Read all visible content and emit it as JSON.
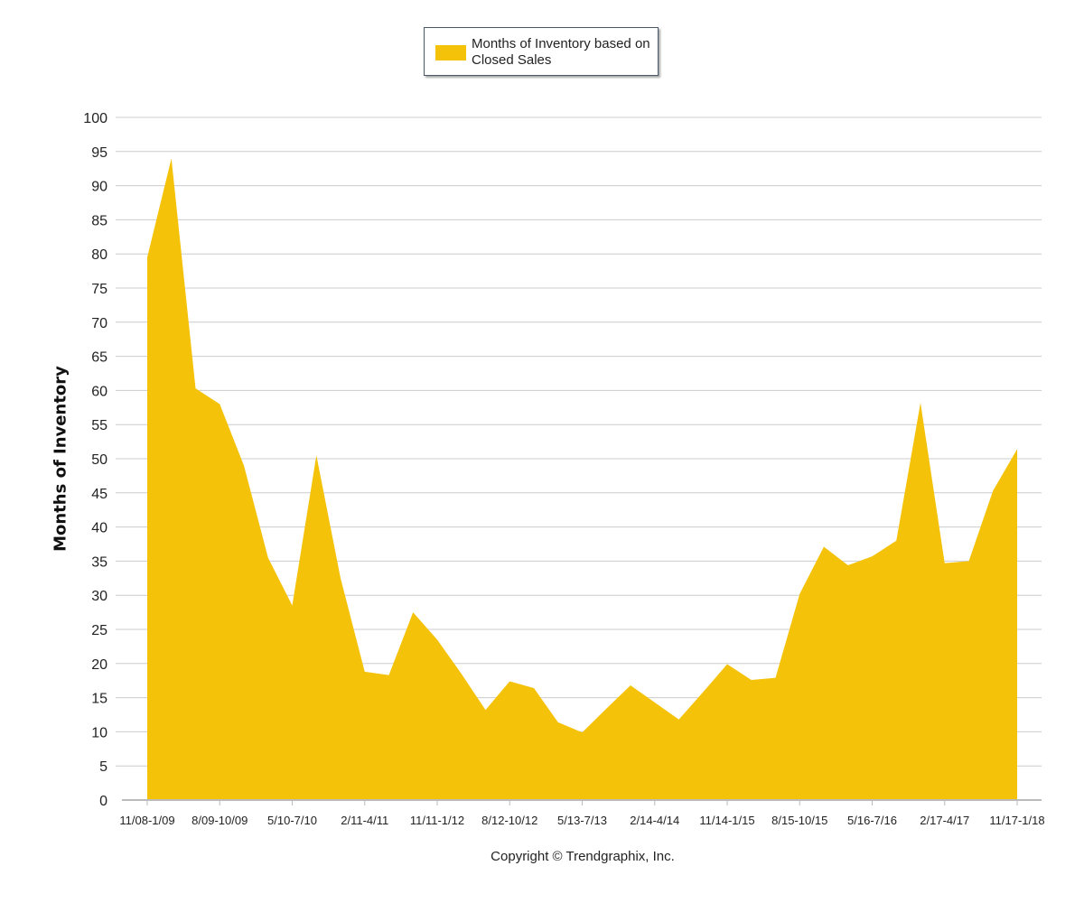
{
  "legend": {
    "label": "Months of Inventory based on Closed Sales"
  },
  "copyright": "Copyright © Trendgraphix, Inc.",
  "colors": {
    "fill": "#F5C20A",
    "grid": "#cccccc",
    "axis": "#bbbbbb"
  },
  "chart_data": {
    "type": "area",
    "title": "",
    "xlabel": "",
    "ylabel": "Months of Inventory",
    "ylim": [
      0,
      100
    ],
    "yticks": [
      0,
      5,
      10,
      15,
      20,
      25,
      30,
      35,
      40,
      45,
      50,
      55,
      60,
      65,
      70,
      75,
      80,
      85,
      90,
      95,
      100
    ],
    "grid": true,
    "legend_position": "top-center",
    "x_tick_labels": [
      "11/08-1/09",
      "8/09-10/09",
      "5/10-7/10",
      "2/11-4/11",
      "11/11-1/12",
      "8/12-10/12",
      "5/13-7/13",
      "2/14-4/14",
      "11/14-1/15",
      "8/15-10/15",
      "5/16-7/16",
      "2/17-4/17",
      "11/17-1/18"
    ],
    "series": [
      {
        "name": "Months of Inventory based on Closed Sales",
        "values": [
          79.5,
          94,
          60.3,
          58,
          49,
          35.5,
          28.5,
          50.5,
          32.5,
          18.8,
          18.3,
          27.5,
          23.5,
          18.5,
          13.2,
          17.4,
          16.4,
          11.4,
          9.9,
          13.4,
          16.8,
          14.3,
          11.8,
          15.8,
          19.9,
          17.6,
          17.9,
          30.2,
          37.1,
          34.4,
          35.7,
          38,
          58.2,
          34.7,
          35,
          45.3,
          51.4
        ]
      }
    ]
  }
}
